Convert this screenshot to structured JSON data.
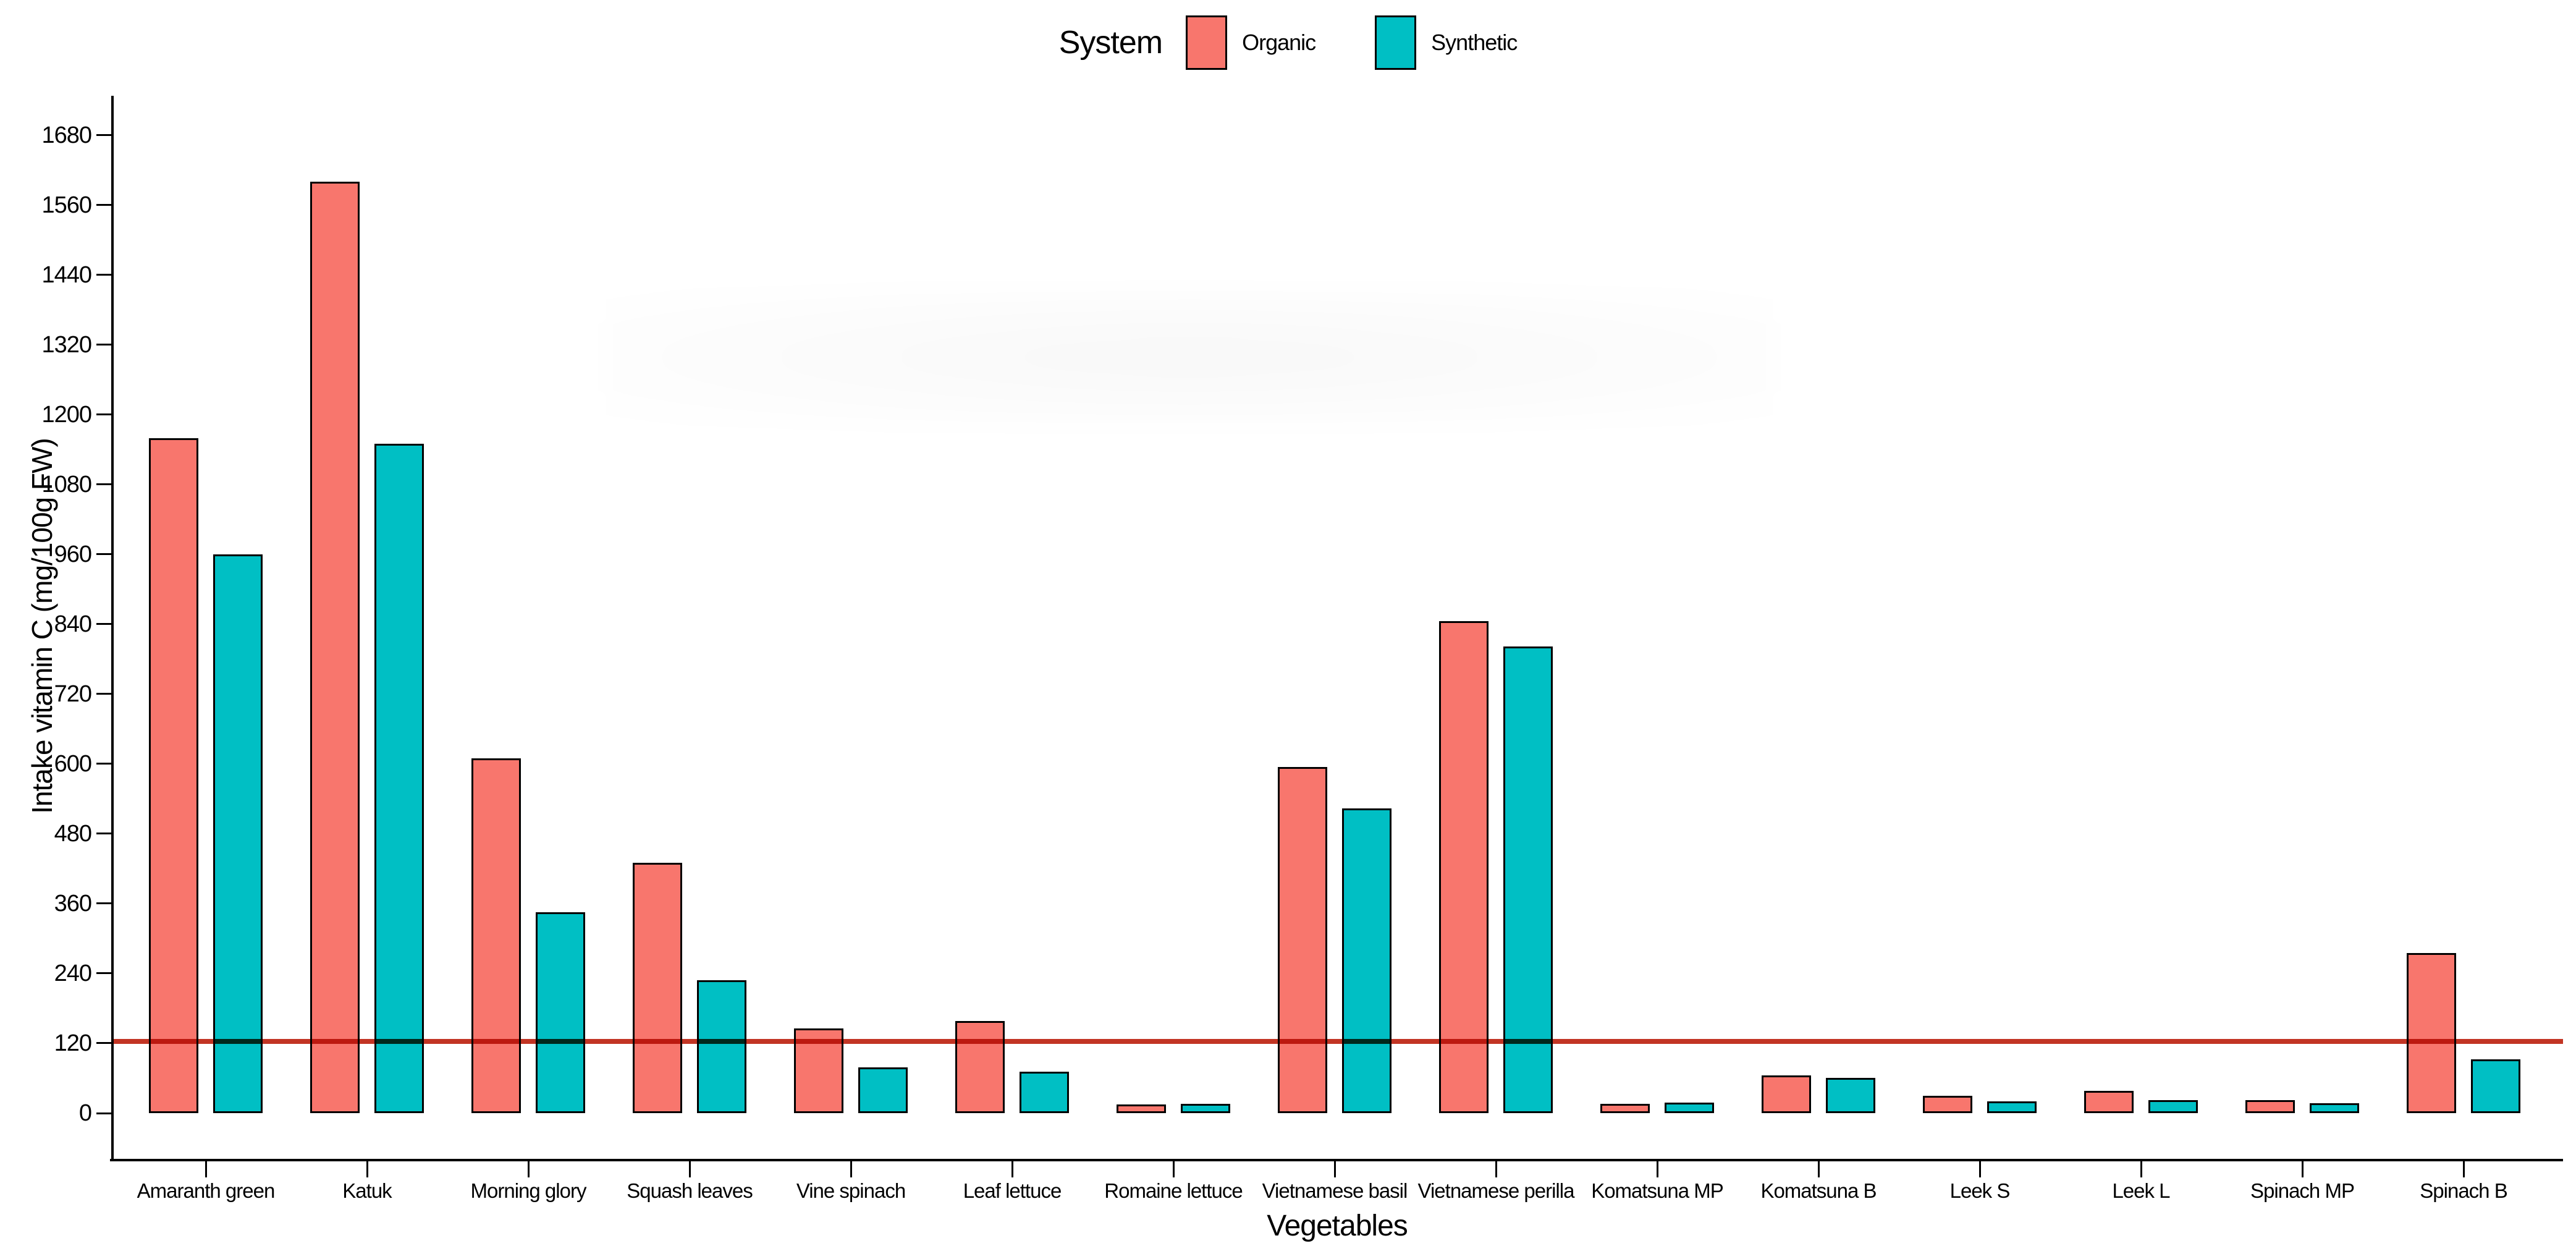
{
  "legend": {
    "title": "System",
    "items": [
      {
        "label": "Organic",
        "color": "#F8766D"
      },
      {
        "label": "Synthetic",
        "color": "#00BFC4"
      }
    ]
  },
  "chart_data": {
    "type": "bar",
    "title": "",
    "xlabel": "Vegetables",
    "ylabel": "Intake vitamin C (mg/100g FW)",
    "categories": [
      "Amaranth green",
      "Katuk",
      "Morning glory",
      "Squash leaves",
      "Vine spinach",
      "Leaf lettuce",
      "Romaine lettuce",
      "Vietnamese basil",
      "Vietnamese perilla",
      "Komatsuna MP",
      "Komatsuna B",
      "Leek S",
      "Leek L",
      "Spinach MP",
      "Spinach B"
    ],
    "series": [
      {
        "name": "Organic",
        "color": "#F8766D",
        "values": [
          1160,
          1600,
          610,
          430,
          145,
          158,
          15,
          595,
          845,
          16,
          65,
          30,
          38,
          22,
          275
        ]
      },
      {
        "name": "Synthetic",
        "color": "#00BFC4",
        "values": [
          960,
          1150,
          345,
          228,
          79,
          71,
          16,
          523,
          802,
          18,
          60,
          20,
          22,
          17,
          92
        ]
      }
    ],
    "reference_line": {
      "value": 123,
      "color": "#C23524"
    },
    "y_ticks": [
      0,
      120,
      240,
      360,
      480,
      600,
      720,
      840,
      960,
      1080,
      1200,
      1320,
      1440,
      1560,
      1680
    ],
    "ylim": [
      0,
      1740
    ],
    "grid": false,
    "legend_position": "top",
    "bar_outline_color": "#000000",
    "axis_color": "#000000"
  }
}
